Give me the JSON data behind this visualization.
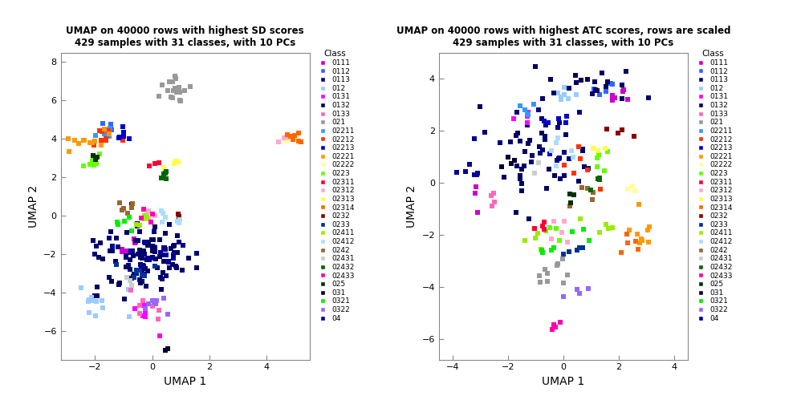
{
  "title1": "UMAP on 40000 rows with highest SD scores\n429 samples with 31 classes, with 10 PCs",
  "title2": "UMAP on 40000 rows with highest ATC scores, rows are scaled\n429 samples with 31 classes, with 10 PCs",
  "xlabel": "UMAP 1",
  "ylabel": "UMAP 2",
  "legend_title": "Class",
  "classes": [
    "0111",
    "0112",
    "0113",
    "012",
    "0131",
    "0132",
    "0133",
    "021",
    "02211",
    "02212",
    "02213",
    "02221",
    "02222",
    "0223",
    "02311",
    "02312",
    "02313",
    "02314",
    "0232",
    "0233",
    "02411",
    "02412",
    "0242",
    "02431",
    "02432",
    "02433",
    "025",
    "031",
    "0321",
    "0322",
    "04"
  ],
  "colors_map": {
    "0111": "#CC00CC",
    "0112": "#3366FF",
    "0113": "#000080",
    "012": "#99CCFF",
    "0131": "#FF00FF",
    "0132": "#000066",
    "0133": "#FF66BB",
    "021": "#999999",
    "02211": "#3399FF",
    "02212": "#FF3300",
    "02213": "#0000CC",
    "02221": "#FF9900",
    "02222": "#FFFF99",
    "0223": "#66FF00",
    "02311": "#FF0033",
    "02312": "#FFAACC",
    "02313": "#FFFF44",
    "02314": "#FF6600",
    "0232": "#880000",
    "0233": "#003399",
    "02411": "#99EE00",
    "02412": "#AADDFF",
    "0242": "#996633",
    "02431": "#CCCCCC",
    "02432": "#006600",
    "02433": "#FF00AA",
    "025": "#003300",
    "031": "#000033",
    "0321": "#00EE00",
    "0322": "#9966FF",
    "04": "#000099"
  },
  "plot1_xlim": [
    -3.2,
    5.5
  ],
  "plot1_ylim": [
    -7.5,
    8.5
  ],
  "plot1_xticks": [
    -2,
    0,
    2,
    4
  ],
  "plot1_yticks": [
    -6,
    -4,
    -2,
    0,
    2,
    4,
    6,
    8
  ],
  "plot2_xlim": [
    -4.5,
    4.5
  ],
  "plot2_ylim": [
    -6.8,
    5.0
  ],
  "plot2_xticks": [
    -4,
    -2,
    0,
    2,
    4
  ],
  "plot2_yticks": [
    -6,
    -4,
    -2,
    0,
    2,
    4
  ],
  "point_size": 20,
  "figwidth": 10.08,
  "figheight": 5.04,
  "dpi": 100
}
